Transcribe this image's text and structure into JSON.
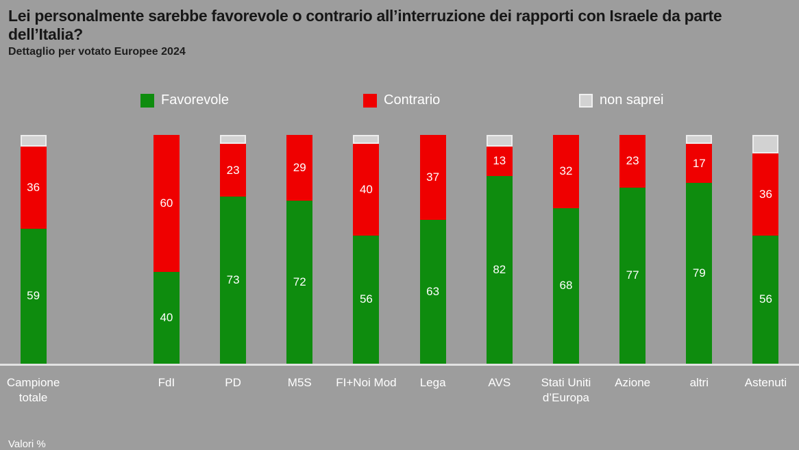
{
  "title": "Lei personalmente sarebbe favorevole o contrario all’interruzione dei rapporti con Israele da parte dell’Italia?",
  "subtitle": "Dettaglio per votato Europee 2024",
  "footnote": "Valori %",
  "colors": {
    "background": "#9d9d9d",
    "favorevole": "#0e8c0e",
    "contrario": "#ef0000",
    "non_saprei": "#d2d2d2",
    "baseline": "#e3e3e3",
    "bar_label_text": "#ffffff"
  },
  "legend": [
    {
      "label": "Favorevole",
      "color": "#0e8c0e"
    },
    {
      "label": "Contrario",
      "color": "#ef0000"
    },
    {
      "label": "non saprei",
      "color": "#d2d2d2"
    }
  ],
  "chart_data": {
    "type": "bar",
    "stacked": true,
    "title": "Lei personalmente sarebbe favorevole o contrario all’interruzione dei rapporti con Israele da parte dell’Italia?",
    "subtitle": "Dettaglio per votato Europee 2024",
    "unit": "Valori %",
    "ylim": [
      0,
      100
    ],
    "grid": false,
    "legend_position": "top",
    "categories": [
      "Campione totale",
      "FdI",
      "PD",
      "M5S",
      "FI+Noi Mod",
      "Lega",
      "AVS",
      "Stati Uniti d’Europa",
      "Azione",
      "altri",
      "Astenuti"
    ],
    "gap_after_first_category": true,
    "series": [
      {
        "name": "Favorevole",
        "color": "#0e8c0e",
        "values": [
          59,
          40,
          73,
          72,
          56,
          63,
          82,
          68,
          77,
          79,
          56
        ],
        "labels_shown": true
      },
      {
        "name": "Contrario",
        "color": "#ef0000",
        "values": [
          36,
          60,
          23,
          29,
          40,
          37,
          13,
          32,
          23,
          17,
          36
        ],
        "labels_shown": true
      },
      {
        "name": "non saprei",
        "color": "#d2d2d2",
        "values": [
          5,
          0,
          4,
          0,
          4,
          0,
          5,
          0,
          0,
          4,
          8
        ],
        "labels_shown": false
      }
    ]
  }
}
